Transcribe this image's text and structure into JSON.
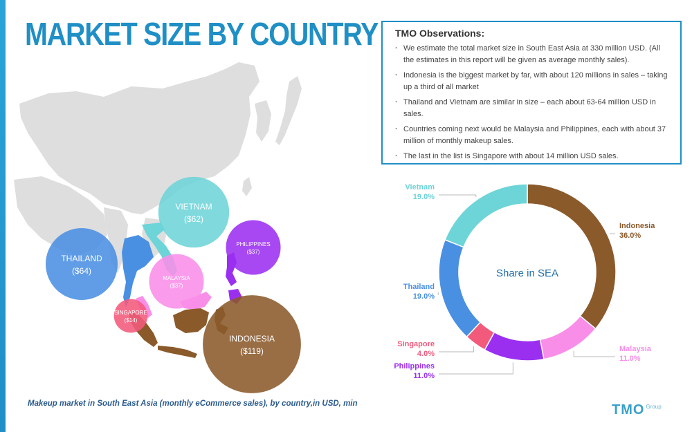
{
  "title": "MARKET SIZE BY COUNTRY",
  "observations": {
    "heading": "TMO Observations:",
    "items": [
      "We estimate the total market size in South East Asia at 330 million USD. (All the estimates in this report will be given as average monthly sales).",
      "Indonesia is the biggest market by far, with about 120 millions in sales – taking up a third of all market",
      "Thailand and Vietnam are similar in size – each about 63-64 million USD in sales.",
      "Countries coming next would be Malaysia and Philippines, each with about 37 million of monthly makeup sales.",
      "The last in the list is Singapore with about 14 million USD sales."
    ]
  },
  "caption": "Makeup market in South East Asia (monthly eCommerce sales), by country,in USD, min",
  "logo": {
    "main": "TMO",
    "sub": "Group"
  },
  "colors": {
    "accent": "#1f8fc6",
    "Indonesia": "#8b5a2b",
    "Vietnam": "#6dd4d8",
    "Thailand": "#4a90e2",
    "Malaysia": "#f98ee8",
    "Philippines": "#9b2ff0",
    "Singapore": "#f25a7c",
    "land": "#dedede"
  },
  "chart_data": [
    {
      "type": "bubble",
      "unit": "USD, min",
      "points": [
        {
          "country": "THAILAND",
          "label": "THAILAND",
          "value_label": "($64)",
          "value": 64,
          "color": "#4a90e2"
        },
        {
          "country": "VIETNAM",
          "label": "VIETNAM",
          "value_label": "($62)",
          "value": 62,
          "color": "#6dd4d8"
        },
        {
          "country": "PHILIPPINES",
          "label": "PHILIPPINES",
          "value_label": "($37)",
          "value": 37,
          "color": "#9b2ff0"
        },
        {
          "country": "MALAYSIA",
          "label": "MALAYSIA",
          "value_label": "($37)",
          "value": 37,
          "color": "#f98ee8"
        },
        {
          "country": "SINGAPORE",
          "label": "SINGAPORE",
          "value_label": "($14)",
          "value": 14,
          "color": "#f25a7c"
        },
        {
          "country": "INDONESIA",
          "label": "INDONESIA",
          "value_label": "($119)",
          "value": 119,
          "color": "#8b5a2b"
        }
      ]
    },
    {
      "type": "pie",
      "title": "Share in SEA",
      "slices": [
        {
          "name": "Indonesia",
          "value": 36.0,
          "label": "36.0%",
          "color": "#8b5a2b"
        },
        {
          "name": "Malaysia",
          "value": 11.0,
          "label": "11.0%",
          "color": "#f98ee8"
        },
        {
          "name": "Philippines",
          "value": 11.0,
          "label": "11.0%",
          "color": "#9b2ff0"
        },
        {
          "name": "Singapore",
          "value": 4.0,
          "label": "4.0%",
          "color": "#f25a7c"
        },
        {
          "name": "Thailand",
          "value": 19.0,
          "label": "19.0%",
          "color": "#4a90e2"
        },
        {
          "name": "Vietnam",
          "value": 19.0,
          "label": "19.0%",
          "color": "#6dd4d8"
        }
      ]
    }
  ]
}
